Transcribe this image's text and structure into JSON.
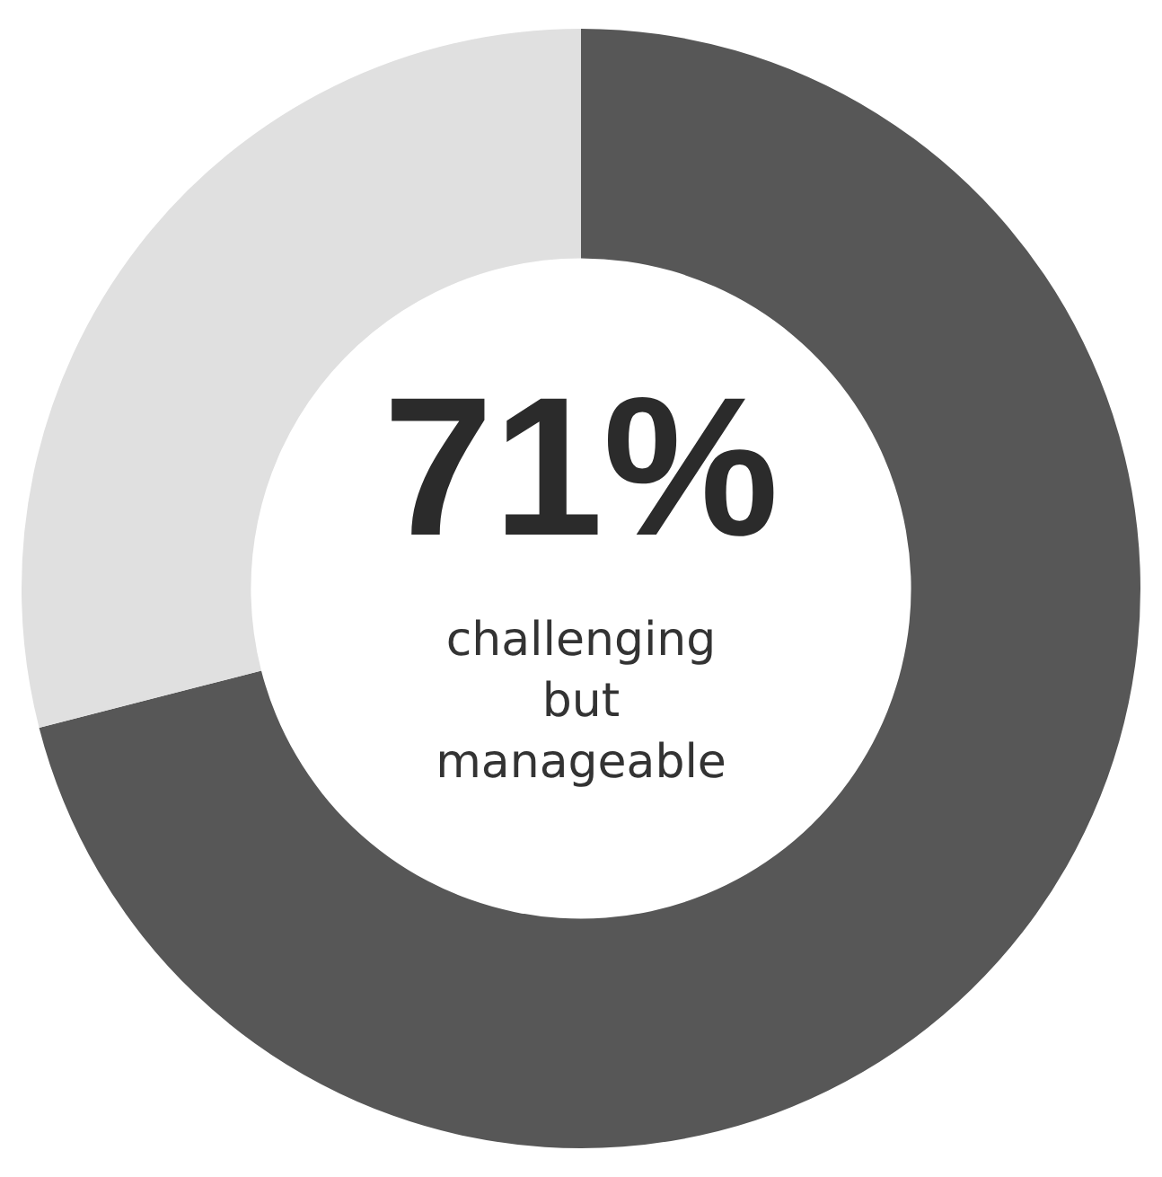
{
  "chart_data": {
    "type": "donut",
    "categories": [
      "challenging but manageable",
      null
    ],
    "values": [
      71,
      29
    ],
    "colors": [
      "#575757",
      "#e0e0e0"
    ],
    "value_labels": [
      "71%",
      null
    ],
    "legend": false
  }
}
